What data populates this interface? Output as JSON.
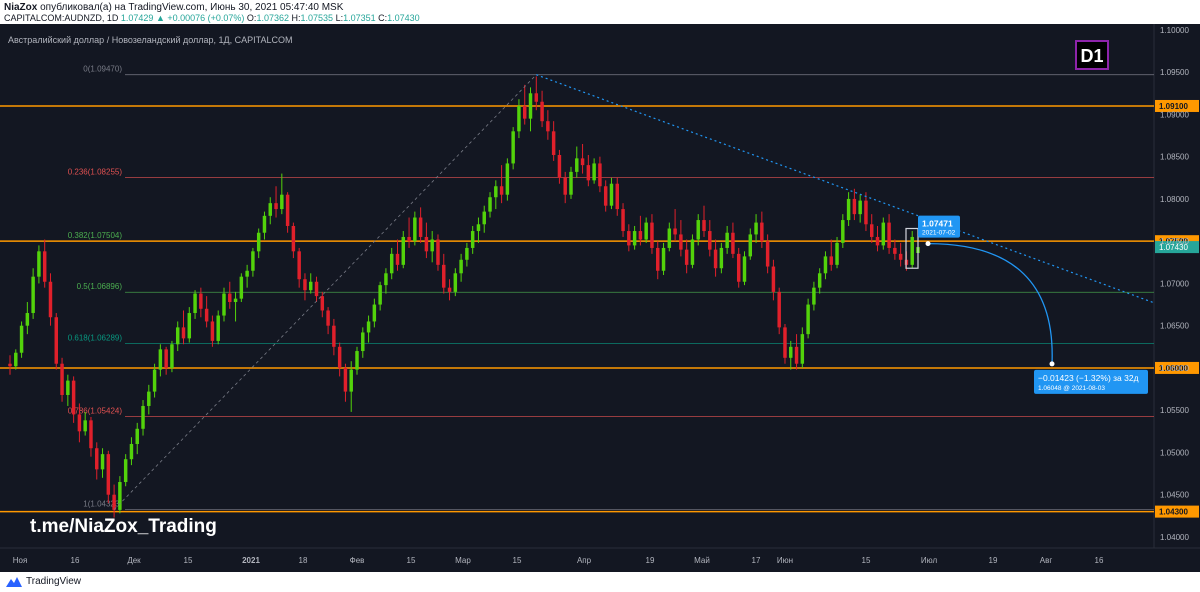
{
  "header": {
    "author": "NiaZox",
    "published_text": "опубликовал(а) на TradingView.com, Июнь 30, 2021 05:47:40 MSK",
    "symbol_line_prefix": "CAPITALCOM:AUDNZD, 1D",
    "last_price": "1.07429",
    "change": "▲ +0.00076 (+0.07%)",
    "ohlc": [
      {
        "label": "O:",
        "value": "1.07362"
      },
      {
        "label": "H:",
        "value": "1.07535"
      },
      {
        "label": "L:",
        "value": "1.07351"
      },
      {
        "label": "C:",
        "value": "1.07430"
      }
    ]
  },
  "chart_title": "Австралийский доллар / Новозеландский доллар, 1Д, CAPITALCOM",
  "timeframe_badge": "D1",
  "watermark": "t.me/NiaZox_Trading",
  "footer": {
    "brand": "TradingView"
  },
  "colors": {
    "background": "#131722",
    "up": "#53d30b",
    "down": "#e0202b",
    "orange_level": "#ff9800",
    "fib_red": "#e25151",
    "fib_green": "#4caf50",
    "fib_teal": "#089981",
    "fib_grey": "#787b86",
    "projection_blue": "#2196f3",
    "trendline_blue": "#2196f3",
    "badge_purple": "#8e24aa"
  },
  "chart_data": {
    "type": "candlestick",
    "ylim": [
      1.0368,
      1.1007
    ],
    "y_ticks": [
      "1.10000",
      "1.09500",
      "1.09000",
      "1.08500",
      "1.08000",
      "1.07500",
      "1.07000",
      "1.06500",
      "1.06000",
      "1.05500",
      "1.05000",
      "1.04500",
      "1.04000"
    ],
    "x_ticks": [
      "Ноя",
      "16",
      "Дек",
      "15",
      "2021",
      "18",
      "Фев",
      "15",
      "Мар",
      "15",
      "Апр",
      "19",
      "Май",
      "17",
      "Июн",
      "15",
      "Июл",
      "19",
      "Авг",
      "16"
    ],
    "horizontal_levels": [
      "1.09100",
      "1.07500",
      "1.06000",
      "1.04300"
    ],
    "current_price": "1.07430",
    "fibonacci": [
      {
        "label": "0(1.09470)",
        "price": 1.0947
      },
      {
        "label": "0.236(1.08255)",
        "price": 1.08255
      },
      {
        "label": "0.382(1.07504)",
        "price": 1.07504
      },
      {
        "label": "0.5(1.06896)",
        "price": 1.06896
      },
      {
        "label": "0.618(1.06289)",
        "price": 1.06289
      },
      {
        "label": "0.786(1.05424)",
        "price": 1.05424
      },
      {
        "label": "1(1.04323)",
        "price": 1.04323
      }
    ],
    "annotations": {
      "marker_price": "1.07471",
      "marker_date": "2021-07-02",
      "projection_change": "−0.01423 (−1.32%) за 32д",
      "projection_target": "1.06048 @ 2021-08-03"
    },
    "candles": [
      [
        1.0605,
        1.0615,
        1.0592,
        1.0602
      ],
      [
        1.0602,
        1.0622,
        1.0598,
        1.0618
      ],
      [
        1.0618,
        1.0655,
        1.0612,
        1.065
      ],
      [
        1.065,
        1.0678,
        1.064,
        1.0665
      ],
      [
        1.0665,
        1.0718,
        1.0658,
        1.0708
      ],
      [
        1.0708,
        1.0745,
        1.07,
        1.0738
      ],
      [
        1.0738,
        1.0752,
        1.0695,
        1.0702
      ],
      [
        1.0702,
        1.0712,
        1.065,
        1.066
      ],
      [
        1.066,
        1.0665,
        1.0598,
        1.0605
      ],
      [
        1.0605,
        1.0612,
        1.056,
        1.0568
      ],
      [
        1.0568,
        1.0592,
        1.0555,
        1.0585
      ],
      [
        1.0585,
        1.059,
        1.0535,
        1.0545
      ],
      [
        1.0545,
        1.0558,
        1.0512,
        1.0525
      ],
      [
        1.0525,
        1.0548,
        1.052,
        1.0538
      ],
      [
        1.0538,
        1.0542,
        1.0495,
        1.0505
      ],
      [
        1.0505,
        1.0512,
        1.0468,
        1.048
      ],
      [
        1.048,
        1.0505,
        1.047,
        1.0498
      ],
      [
        1.0498,
        1.0502,
        1.044,
        1.045
      ],
      [
        1.045,
        1.0462,
        1.0423,
        1.0432
      ],
      [
        1.0432,
        1.0472,
        1.0428,
        1.0465
      ],
      [
        1.0465,
        1.0498,
        1.046,
        1.0492
      ],
      [
        1.0492,
        1.0518,
        1.0485,
        1.051
      ],
      [
        1.051,
        1.0535,
        1.0498,
        1.0528
      ],
      [
        1.0528,
        1.0562,
        1.052,
        1.0555
      ],
      [
        1.0555,
        1.058,
        1.0545,
        1.0572
      ],
      [
        1.0572,
        1.0605,
        1.0565,
        1.0598
      ],
      [
        1.0598,
        1.0628,
        1.059,
        1.0622
      ],
      [
        1.0622,
        1.0625,
        1.0592,
        1.06
      ],
      [
        1.06,
        1.0632,
        1.0595,
        1.0628
      ],
      [
        1.0628,
        1.0655,
        1.062,
        1.0648
      ],
      [
        1.0648,
        1.0668,
        1.0628,
        1.0635
      ],
      [
        1.0635,
        1.0672,
        1.063,
        1.0665
      ],
      [
        1.0665,
        1.0692,
        1.0658,
        1.0688
      ],
      [
        1.0688,
        1.0695,
        1.066,
        1.067
      ],
      [
        1.067,
        1.0685,
        1.0648,
        1.0655
      ],
      [
        1.0655,
        1.0662,
        1.0625,
        1.0632
      ],
      [
        1.0632,
        1.0668,
        1.0628,
        1.0662
      ],
      [
        1.0662,
        1.0695,
        1.0655,
        1.0688
      ],
      [
        1.0688,
        1.0702,
        1.067,
        1.0678
      ],
      [
        1.0678,
        1.069,
        1.0655,
        1.0682
      ],
      [
        1.0682,
        1.0712,
        1.0678,
        1.0708
      ],
      [
        1.0708,
        1.0722,
        1.0695,
        1.0715
      ],
      [
        1.0715,
        1.0742,
        1.0708,
        1.0738
      ],
      [
        1.0738,
        1.0765,
        1.073,
        1.076
      ],
      [
        1.076,
        1.0785,
        1.0752,
        1.078
      ],
      [
        1.078,
        1.0802,
        1.077,
        1.0795
      ],
      [
        1.0795,
        1.0815,
        1.0778,
        1.0788
      ],
      [
        1.0788,
        1.083,
        1.0782,
        1.0805
      ],
      [
        1.0805,
        1.0808,
        1.076,
        1.0768
      ],
      [
        1.0768,
        1.0772,
        1.073,
        1.0738
      ],
      [
        1.0738,
        1.0742,
        1.0695,
        1.0705
      ],
      [
        1.0705,
        1.0712,
        1.068,
        1.0692
      ],
      [
        1.0692,
        1.0712,
        1.0688,
        1.0702
      ],
      [
        1.0702,
        1.0708,
        1.0678,
        1.0685
      ],
      [
        1.0685,
        1.069,
        1.066,
        1.0668
      ],
      [
        1.0668,
        1.0672,
        1.064,
        1.065
      ],
      [
        1.065,
        1.0658,
        1.0615,
        1.0625
      ],
      [
        1.0625,
        1.063,
        1.059,
        1.06
      ],
      [
        1.06,
        1.0605,
        1.056,
        1.0572
      ],
      [
        1.0572,
        1.0608,
        1.0548,
        1.0598
      ],
      [
        1.0598,
        1.0625,
        1.0592,
        1.062
      ],
      [
        1.062,
        1.0648,
        1.0612,
        1.0642
      ],
      [
        1.0642,
        1.0662,
        1.063,
        1.0655
      ],
      [
        1.0655,
        1.0682,
        1.0648,
        1.0675
      ],
      [
        1.0675,
        1.0702,
        1.0668,
        1.0698
      ],
      [
        1.0698,
        1.0718,
        1.0688,
        1.0712
      ],
      [
        1.0712,
        1.0742,
        1.0705,
        1.0735
      ],
      [
        1.0735,
        1.0752,
        1.0715,
        1.0722
      ],
      [
        1.0722,
        1.0762,
        1.0718,
        1.0755
      ],
      [
        1.0755,
        1.0778,
        1.0742,
        1.075
      ],
      [
        1.075,
        1.0785,
        1.0745,
        1.0778
      ],
      [
        1.0778,
        1.079,
        1.0748,
        1.0755
      ],
      [
        1.0755,
        1.0772,
        1.073,
        1.0738
      ],
      [
        1.0738,
        1.0762,
        1.0725,
        1.0752
      ],
      [
        1.0752,
        1.0758,
        1.0715,
        1.0722
      ],
      [
        1.0722,
        1.0735,
        1.0688,
        1.0695
      ],
      [
        1.0695,
        1.0705,
        1.068,
        1.069
      ],
      [
        1.069,
        1.0718,
        1.0685,
        1.0712
      ],
      [
        1.0712,
        1.0735,
        1.0702,
        1.0728
      ],
      [
        1.0728,
        1.0748,
        1.072,
        1.0742
      ],
      [
        1.0742,
        1.0768,
        1.0735,
        1.0762
      ],
      [
        1.0762,
        1.0778,
        1.0748,
        1.077
      ],
      [
        1.077,
        1.0792,
        1.076,
        1.0785
      ],
      [
        1.0785,
        1.0808,
        1.0778,
        1.0802
      ],
      [
        1.0802,
        1.0822,
        1.0788,
        1.0815
      ],
      [
        1.0815,
        1.084,
        1.0795,
        1.0805
      ],
      [
        1.0805,
        1.0848,
        1.0798,
        1.0842
      ],
      [
        1.0842,
        1.0885,
        1.0835,
        1.088
      ],
      [
        1.088,
        1.0918,
        1.0872,
        1.091
      ],
      [
        1.091,
        1.0935,
        1.0888,
        1.0895
      ],
      [
        1.0895,
        1.0932,
        1.088,
        1.0925
      ],
      [
        1.0925,
        1.0945,
        1.0905,
        1.0915
      ],
      [
        1.0915,
        1.0928,
        1.0885,
        1.0892
      ],
      [
        1.0892,
        1.0905,
        1.087,
        1.088
      ],
      [
        1.088,
        1.0892,
        1.0845,
        1.0852
      ],
      [
        1.0852,
        1.0858,
        1.0818,
        1.0825
      ],
      [
        1.0825,
        1.0832,
        1.0795,
        1.0805
      ],
      [
        1.0805,
        1.0838,
        1.08,
        1.0832
      ],
      [
        1.0832,
        1.0862,
        1.0825,
        1.0848
      ],
      [
        1.0848,
        1.0865,
        1.083,
        1.084
      ],
      [
        1.084,
        1.0852,
        1.0815,
        1.0822
      ],
      [
        1.0822,
        1.0848,
        1.0818,
        1.0842
      ],
      [
        1.0842,
        1.085,
        1.0808,
        1.0815
      ],
      [
        1.0815,
        1.0822,
        1.0785,
        1.0792
      ],
      [
        1.0792,
        1.0825,
        1.0788,
        1.0818
      ],
      [
        1.0818,
        1.0825,
        1.078,
        1.0788
      ],
      [
        1.0788,
        1.0795,
        1.0755,
        1.0762
      ],
      [
        1.0762,
        1.077,
        1.0738,
        1.0745
      ],
      [
        1.0745,
        1.0768,
        1.074,
        1.0762
      ],
      [
        1.0762,
        1.078,
        1.0745,
        1.0752
      ],
      [
        1.0752,
        1.0778,
        1.0748,
        1.0772
      ],
      [
        1.0772,
        1.0782,
        1.0735,
        1.0742
      ],
      [
        1.0742,
        1.075,
        1.0705,
        1.0715
      ],
      [
        1.0715,
        1.0748,
        1.071,
        1.0742
      ],
      [
        1.0742,
        1.0772,
        1.0738,
        1.0765
      ],
      [
        1.0765,
        1.0788,
        1.075,
        1.0758
      ],
      [
        1.0758,
        1.0775,
        1.0732,
        1.074
      ],
      [
        1.074,
        1.0752,
        1.0712,
        1.0722
      ],
      [
        1.0722,
        1.0758,
        1.0718,
        1.0752
      ],
      [
        1.0752,
        1.0782,
        1.0745,
        1.0775
      ],
      [
        1.0775,
        1.0792,
        1.0755,
        1.0762
      ],
      [
        1.0762,
        1.0775,
        1.0732,
        1.074
      ],
      [
        1.074,
        1.0752,
        1.0708,
        1.0718
      ],
      [
        1.0718,
        1.0748,
        1.0712,
        1.0742
      ],
      [
        1.0742,
        1.0768,
        1.0735,
        1.076
      ],
      [
        1.076,
        1.0772,
        1.073,
        1.0735
      ],
      [
        1.0735,
        1.0742,
        1.0695,
        1.0702
      ],
      [
        1.0702,
        1.0738,
        1.0698,
        1.0732
      ],
      [
        1.0732,
        1.0765,
        1.0728,
        1.0758
      ],
      [
        1.0758,
        1.0782,
        1.0748,
        1.0772
      ],
      [
        1.0772,
        1.0785,
        1.0742,
        1.075
      ],
      [
        1.075,
        1.0758,
        1.0712,
        1.072
      ],
      [
        1.072,
        1.0728,
        1.068,
        1.069
      ],
      [
        1.069,
        1.0695,
        1.064,
        1.0648
      ],
      [
        1.0648,
        1.0652,
        1.0605,
        1.0612
      ],
      [
        1.0612,
        1.0632,
        1.0598,
        1.0625
      ],
      [
        1.0625,
        1.064,
        1.0598,
        1.0605
      ],
      [
        1.0605,
        1.0648,
        1.06,
        1.064
      ],
      [
        1.064,
        1.0682,
        1.0635,
        1.0675
      ],
      [
        1.0675,
        1.0702,
        1.0668,
        1.0695
      ],
      [
        1.0695,
        1.0718,
        1.0688,
        1.0712
      ],
      [
        1.0712,
        1.0738,
        1.0705,
        1.0732
      ],
      [
        1.0732,
        1.0752,
        1.0715,
        1.0722
      ],
      [
        1.0722,
        1.0755,
        1.0718,
        1.0748
      ],
      [
        1.0748,
        1.0782,
        1.0742,
        1.0775
      ],
      [
        1.0775,
        1.0808,
        1.0768,
        1.08
      ],
      [
        1.08,
        1.0812,
        1.0775,
        1.0782
      ],
      [
        1.0782,
        1.0805,
        1.0772,
        1.0798
      ],
      [
        1.0798,
        1.0808,
        1.0762,
        1.077
      ],
      [
        1.077,
        1.0782,
        1.0748,
        1.0755
      ],
      [
        1.0755,
        1.0768,
        1.0738,
        1.0745
      ],
      [
        1.0745,
        1.0778,
        1.074,
        1.0772
      ],
      [
        1.0772,
        1.0782,
        1.0735,
        1.0742
      ],
      [
        1.0742,
        1.0752,
        1.0728,
        1.0735
      ],
      [
        1.0735,
        1.0748,
        1.072,
        1.0728
      ],
      [
        1.0728,
        1.0738,
        1.0715,
        1.0722
      ],
      [
        1.0722,
        1.0762,
        1.0718,
        1.0755
      ],
      [
        1.0736,
        1.0754,
        1.0735,
        1.0743
      ]
    ]
  }
}
